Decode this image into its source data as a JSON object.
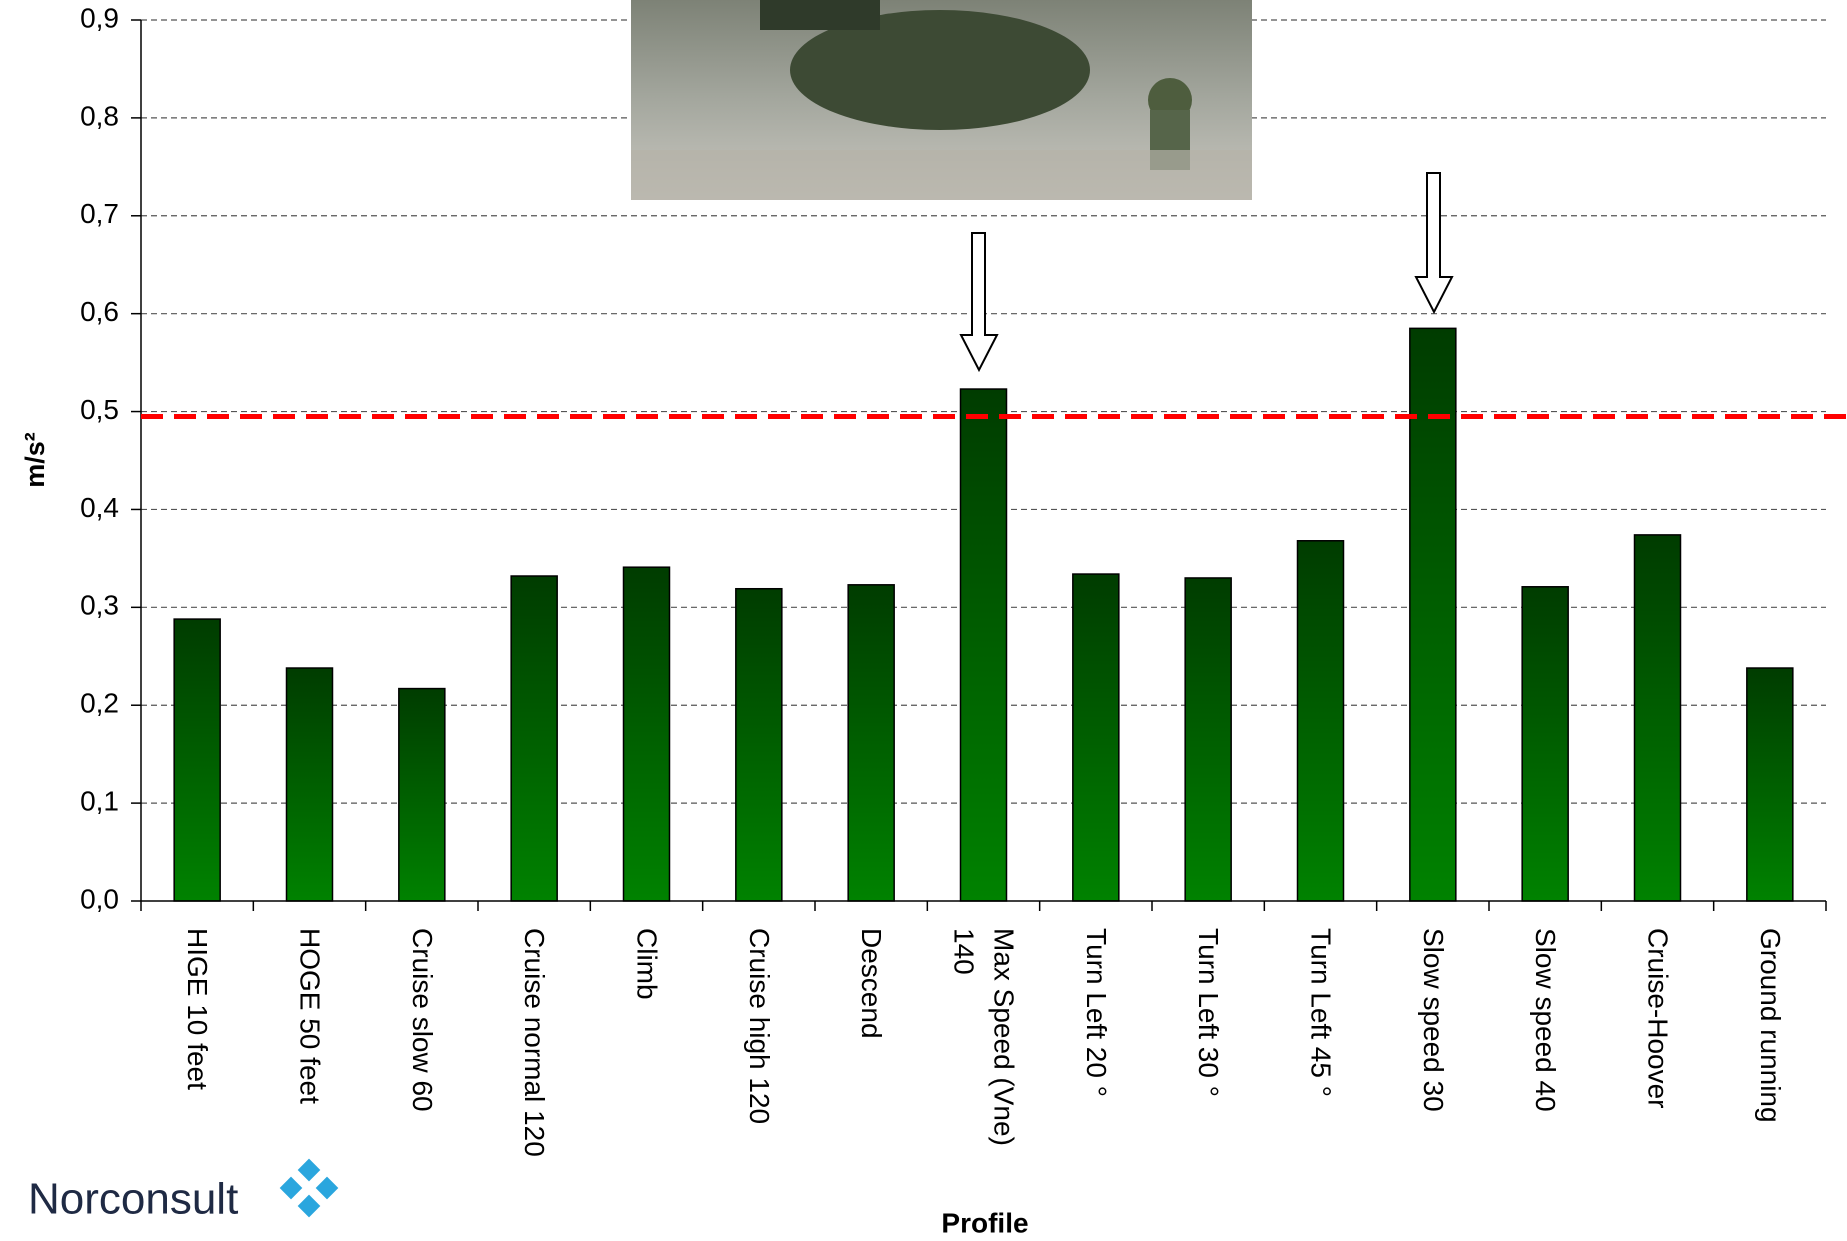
{
  "chart_data": {
    "type": "bar",
    "categories": [
      "HIGE 10 feet",
      "HOGE 50 feet",
      "Cruise slow 60",
      "Cruise normal 120",
      "Climb",
      "Cruise high 120",
      "Descend",
      "Max Speed (Vne)\n140",
      "Turn Left 20 °",
      "Turn Left 30 °",
      "Turn Left 45 °",
      "Slow speed 30",
      "Slow speed 40",
      "Cruise-Hoover",
      "Ground running"
    ],
    "values": [
      0.288,
      0.238,
      0.217,
      0.332,
      0.341,
      0.319,
      0.323,
      0.523,
      0.334,
      0.33,
      0.368,
      0.585,
      0.321,
      0.374,
      0.238
    ],
    "color": "#008000",
    "ylabel": "m/s²",
    "xlabel": "Profile",
    "ylim": [
      0,
      0.9
    ],
    "yticks": [
      {
        "value": 0,
        "label": "0,0"
      },
      {
        "value": 0.1,
        "label": "0,1"
      },
      {
        "value": 0.2,
        "label": "0,2"
      },
      {
        "value": 0.3,
        "label": "0,3"
      },
      {
        "value": 0.4,
        "label": "0,4"
      },
      {
        "value": 0.5,
        "label": "0,5"
      },
      {
        "value": 0.6,
        "label": "0,6"
      },
      {
        "value": 0.7,
        "label": "0,7"
      },
      {
        "value": 0.8,
        "label": "0,8"
      },
      {
        "value": 0.9,
        "label": "0,9"
      }
    ],
    "grid": true,
    "reference_line": {
      "value": 0.495,
      "color": "#ff0000"
    }
  },
  "logo": {
    "text": "Norconsult"
  }
}
